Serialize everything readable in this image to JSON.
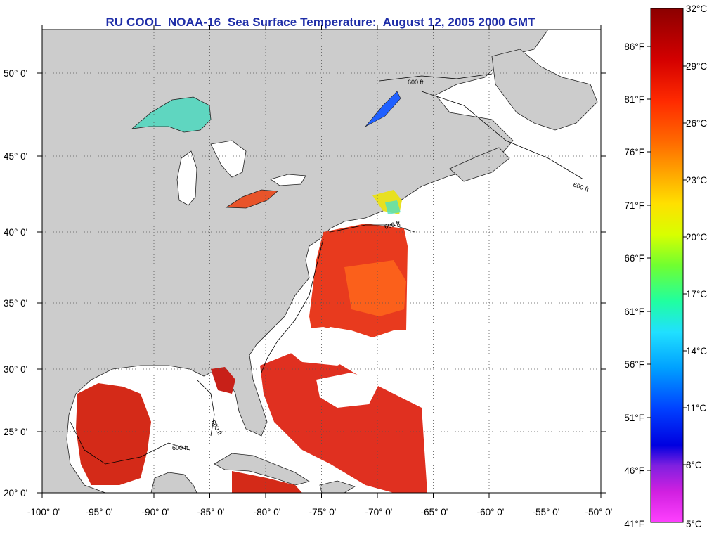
{
  "title": "RU COOL  NOAA-16  Sea Surface Temperature:  August 12, 2005 2000 GMT",
  "map": {
    "lon_labels": [
      "-100° 0'",
      "-95° 0'",
      "-90° 0'",
      "-85° 0'",
      "-80° 0'",
      "-75° 0'",
      "-70° 0'",
      "-65° 0'",
      "-60° 0'",
      "-55° 0'",
      "-50° 0'"
    ],
    "lat_labels": [
      "50° 0'",
      "45° 0'",
      "40° 0'",
      "35° 0'",
      "30° 0'",
      "25° 0'",
      "20° 0'"
    ],
    "contour_label": "600 ft",
    "colors": {
      "land": "#cccccc",
      "water_no_data": "#ffffff",
      "sst_warm": "#e83a1e",
      "sst_hot": "#d01818",
      "sst_lake_cool": "#5fd6c0",
      "grid": "#555555"
    }
  },
  "colorbar": {
    "celsius_labels": [
      "32°C",
      "29°C",
      "26°C",
      "23°C",
      "20°C",
      "17°C",
      "14°C",
      "11°C",
      "8°C",
      "5°C"
    ],
    "fahrenheit_labels": [
      "86°F",
      "81°F",
      "76°F",
      "71°F",
      "66°F",
      "61°F",
      "56°F",
      "51°F",
      "46°F",
      "41°F"
    ],
    "gradient_stops": [
      "#8b0000",
      "#d40000",
      "#ff2a00",
      "#ff6a00",
      "#ffa500",
      "#ffe000",
      "#d8ff00",
      "#70ff30",
      "#20ffa0",
      "#20e0ff",
      "#00a0ff",
      "#0040ff",
      "#0000e0",
      "#8020e0",
      "#d020e0",
      "#ff40ff"
    ]
  }
}
